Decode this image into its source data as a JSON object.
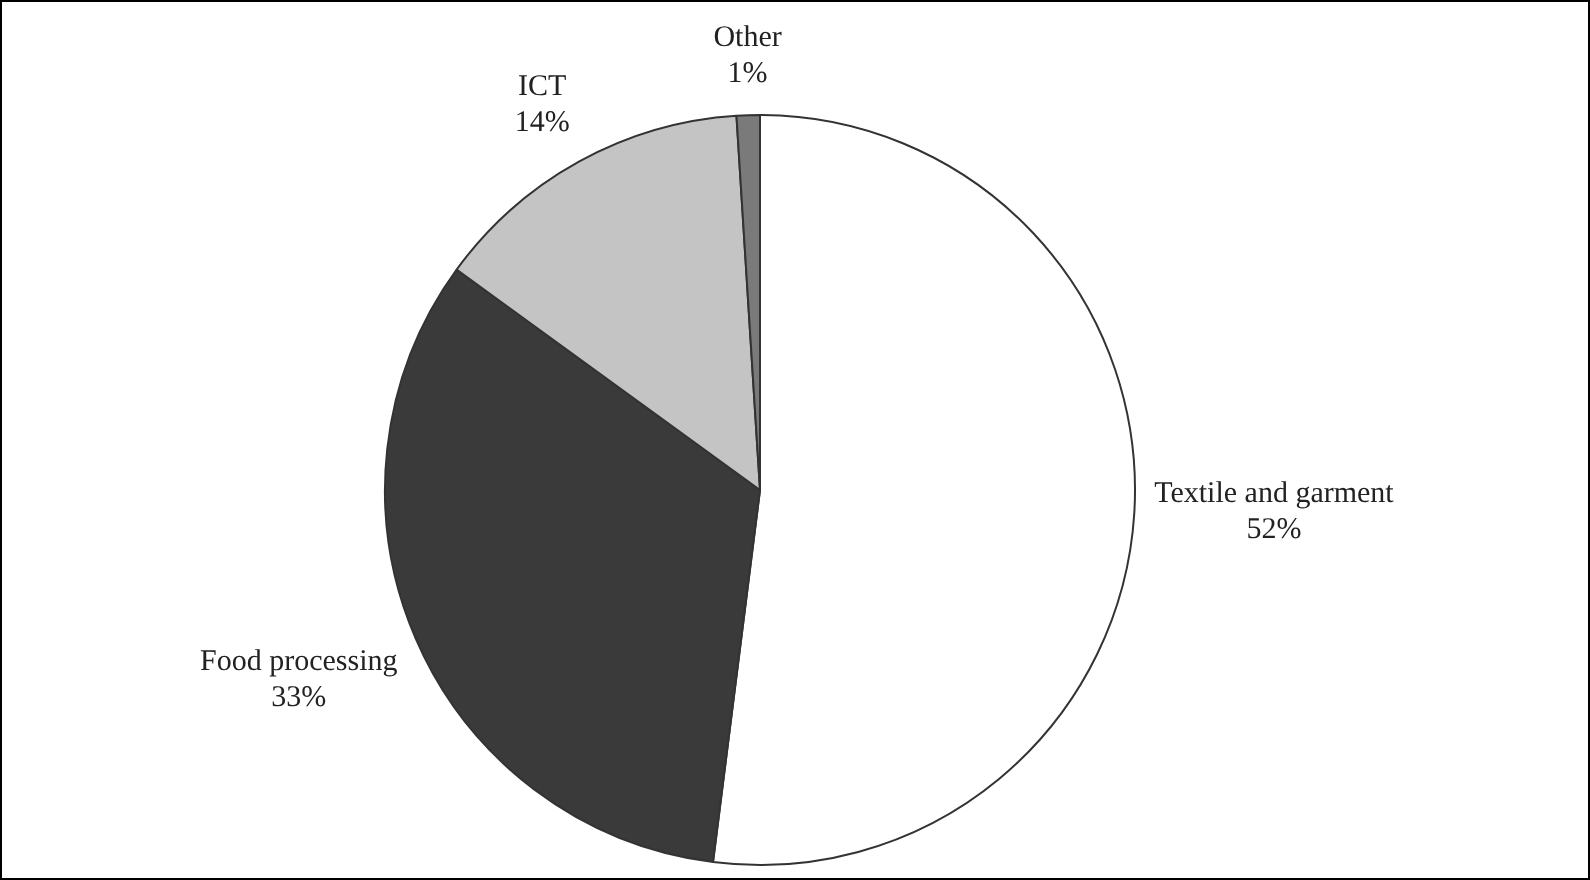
{
  "chart_data": {
    "type": "pie",
    "categories": [
      "Textile and garment",
      "Food processing",
      "ICT",
      "Other"
    ],
    "values": [
      52,
      33,
      14,
      1
    ],
    "colors": [
      "#ffffff",
      "#3a3a3a",
      "#c4c4c4",
      "#7a7a7a"
    ],
    "value_labels": [
      "52%",
      "33%",
      "14%",
      "1%"
    ],
    "legend": false
  }
}
